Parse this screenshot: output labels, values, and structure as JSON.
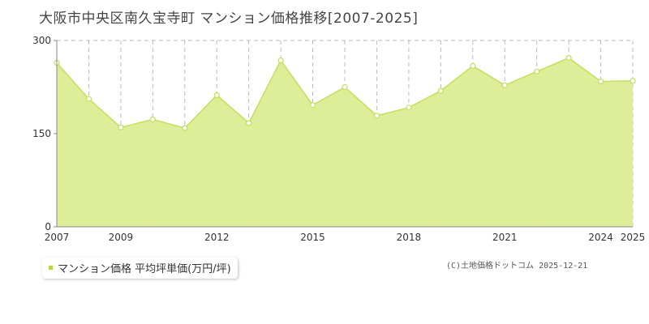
{
  "title": "大阪市中央区南久宝寺町 マンション価格推移[2007-2025]",
  "legend": {
    "label": "マンション価格 平均坪単価(万円/坪)"
  },
  "copyright": "(C)土地価格ドットコム 2025-12-21",
  "colors": {
    "area": "#dcec91",
    "line": "#c2e05c",
    "marker_fill": "#ffffff",
    "marker_stroke": "#c2e05c",
    "legend_swatch": "#b5d93c"
  },
  "chart_data": {
    "type": "area",
    "x": [
      2007,
      2008,
      2009,
      2010,
      2011,
      2012,
      2013,
      2014,
      2015,
      2016,
      2017,
      2018,
      2019,
      2020,
      2021,
      2022,
      2023,
      2024,
      2025
    ],
    "series": [
      {
        "name": "マンション価格 平均坪単価(万円/坪)",
        "values": [
          264,
          206,
          160,
          173,
          159,
          212,
          167,
          268,
          196,
          225,
          179,
          192,
          219,
          259,
          228,
          250,
          272,
          234,
          235
        ]
      }
    ],
    "xticks": [
      2007,
      2009,
      2012,
      2015,
      2018,
      2021,
      2024,
      2025
    ],
    "yticks": [
      0,
      150,
      300
    ],
    "ylim": [
      0,
      300
    ],
    "xlim": [
      2007,
      2025
    ],
    "grid": true
  }
}
